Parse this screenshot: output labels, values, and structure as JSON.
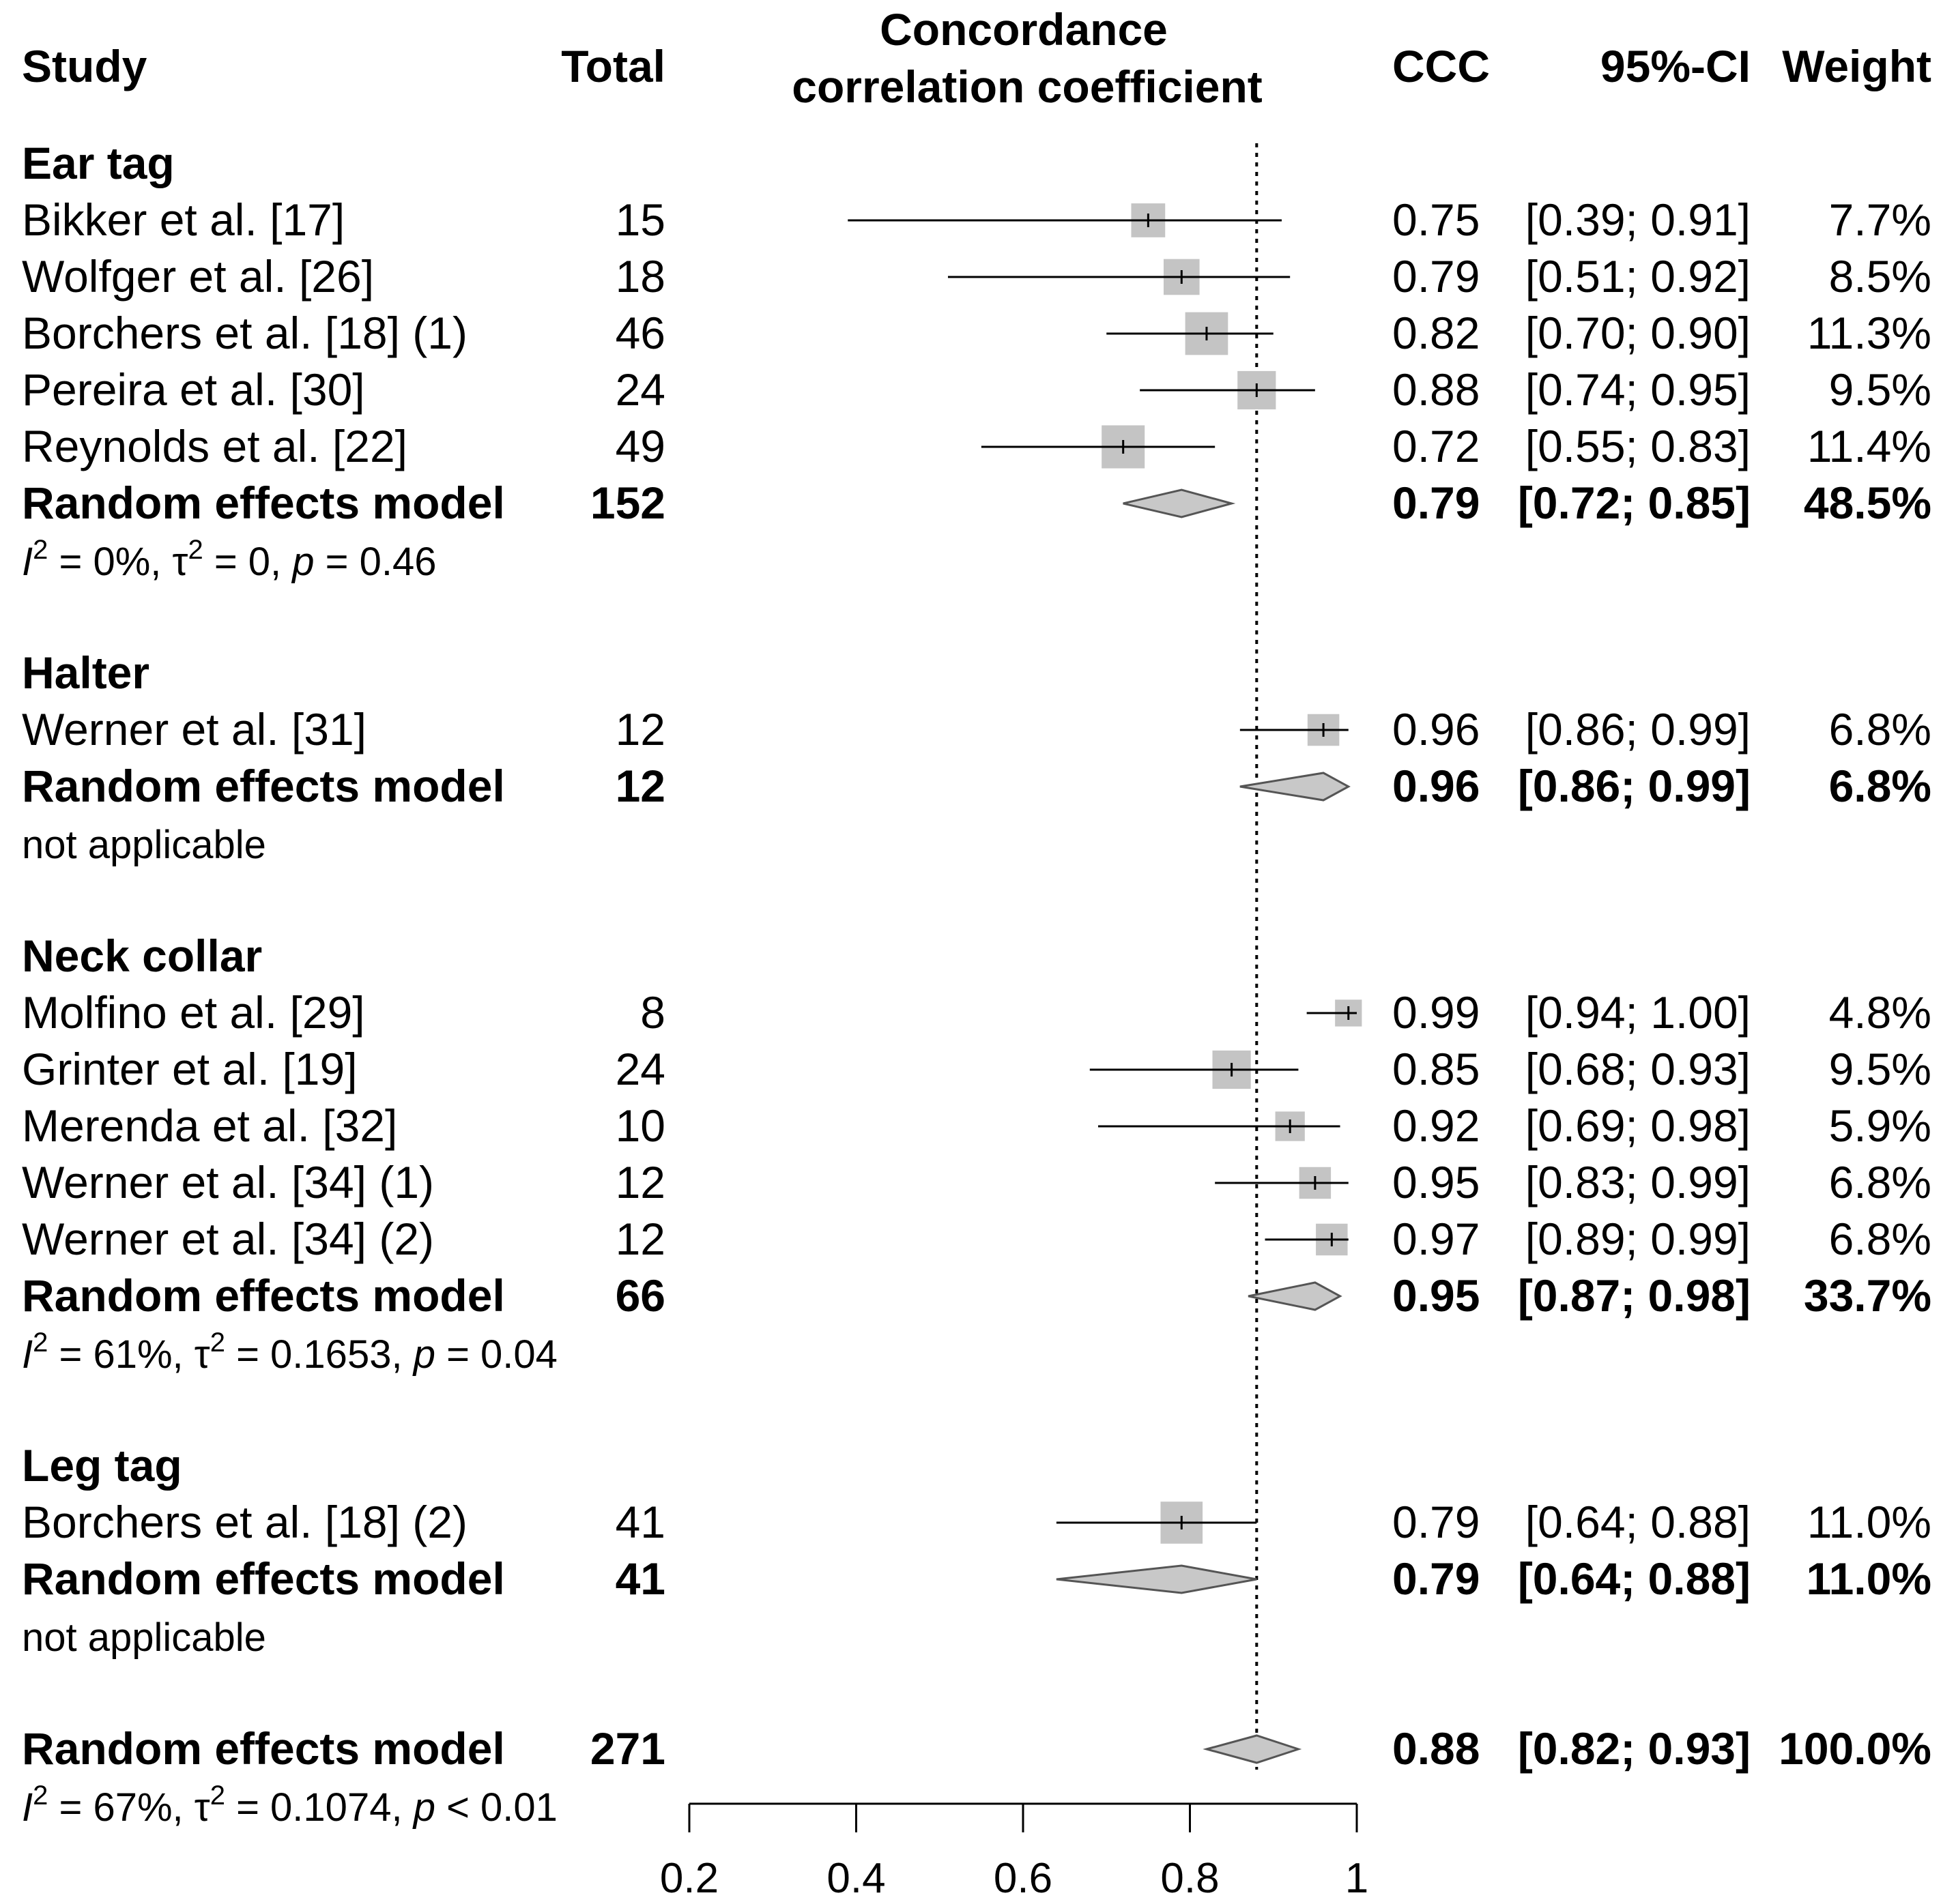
{
  "chart_data": {
    "type": "forest",
    "headers": {
      "study": "Study",
      "total": "Total",
      "plot_title_line1": "Concordance",
      "plot_title_line2": "correlation coefficient",
      "ccc": "CCC",
      "ci": "95%-CI",
      "weight": "Weight"
    },
    "xlim": [
      0.2,
      1.0
    ],
    "xticks": [
      "0.2",
      "0.4",
      "0.6",
      "0.8",
      "1"
    ],
    "reference_line": 0.88,
    "pooled_estimate_label": "Random effects model",
    "rows": [
      {
        "kind": "group",
        "label": "Ear tag"
      },
      {
        "kind": "study",
        "label": "Bikker et al. [17]",
        "total": "15",
        "ccc": "0.75",
        "ci": "[0.39; 0.91]",
        "weight": "7.7%",
        "est": 0.75,
        "lo": 0.39,
        "hi": 0.91,
        "w": 7.7
      },
      {
        "kind": "study",
        "label": "Wolfger et al. [26]",
        "total": "18",
        "ccc": "0.79",
        "ci": "[0.51; 0.92]",
        "weight": "8.5%",
        "est": 0.79,
        "lo": 0.51,
        "hi": 0.92,
        "w": 8.5
      },
      {
        "kind": "study",
        "label": "Borchers et al. [18] (1)",
        "total": "46",
        "ccc": "0.82",
        "ci": "[0.70; 0.90]",
        "weight": "11.3%",
        "est": 0.82,
        "lo": 0.7,
        "hi": 0.9,
        "w": 11.3
      },
      {
        "kind": "study",
        "label": "Pereira et al. [30]",
        "total": "24",
        "ccc": "0.88",
        "ci": "[0.74; 0.95]",
        "weight": "9.5%",
        "est": 0.88,
        "lo": 0.74,
        "hi": 0.95,
        "w": 9.5
      },
      {
        "kind": "study",
        "label": "Reynolds et al. [22]",
        "total": "49",
        "ccc": "0.72",
        "ci": "[0.55; 0.83]",
        "weight": "11.4%",
        "est": 0.72,
        "lo": 0.55,
        "hi": 0.83,
        "w": 11.4
      },
      {
        "kind": "pooled",
        "label": "Random effects model",
        "total": "152",
        "ccc": "0.79",
        "ci": "[0.72; 0.85]",
        "weight": "48.5%",
        "est": 0.79,
        "lo": 0.72,
        "hi": 0.85
      },
      {
        "kind": "het",
        "i2": "0%",
        "tau2": "0",
        "p_op": "=",
        "p": "0.46"
      },
      {
        "kind": "blank"
      },
      {
        "kind": "group",
        "label": "Halter"
      },
      {
        "kind": "study",
        "label": "Werner et al. [31]",
        "total": "12",
        "ccc": "0.96",
        "ci": "[0.86; 0.99]",
        "weight": "6.8%",
        "est": 0.96,
        "lo": 0.86,
        "hi": 0.99,
        "w": 6.8
      },
      {
        "kind": "pooled",
        "label": "Random effects model",
        "total": "12",
        "ccc": "0.96",
        "ci": "[0.86; 0.99]",
        "weight": "6.8%",
        "est": 0.96,
        "lo": 0.86,
        "hi": 0.99
      },
      {
        "kind": "note",
        "label": "not applicable"
      },
      {
        "kind": "blank"
      },
      {
        "kind": "group",
        "label": "Neck collar"
      },
      {
        "kind": "study",
        "label": "Molfino et al. [29]",
        "total": "8",
        "ccc": "0.99",
        "ci": "[0.94; 1.00]",
        "weight": "4.8%",
        "est": 0.99,
        "lo": 0.94,
        "hi": 1.0,
        "w": 4.8
      },
      {
        "kind": "study",
        "label": "Grinter et al. [19]",
        "total": "24",
        "ccc": "0.85",
        "ci": "[0.68; 0.93]",
        "weight": "9.5%",
        "est": 0.85,
        "lo": 0.68,
        "hi": 0.93,
        "w": 9.5
      },
      {
        "kind": "study",
        "label": "Merenda et al. [32]",
        "total": "10",
        "ccc": "0.92",
        "ci": "[0.69; 0.98]",
        "weight": "5.9%",
        "est": 0.92,
        "lo": 0.69,
        "hi": 0.98,
        "w": 5.9
      },
      {
        "kind": "study",
        "label": "Werner et al. [34] (1)",
        "total": "12",
        "ccc": "0.95",
        "ci": "[0.83; 0.99]",
        "weight": "6.8%",
        "est": 0.95,
        "lo": 0.83,
        "hi": 0.99,
        "w": 6.8
      },
      {
        "kind": "study",
        "label": "Werner et al. [34] (2)",
        "total": "12",
        "ccc": "0.97",
        "ci": "[0.89; 0.99]",
        "weight": "6.8%",
        "est": 0.97,
        "lo": 0.89,
        "hi": 0.99,
        "w": 6.8
      },
      {
        "kind": "pooled",
        "label": "Random effects model",
        "total": "66",
        "ccc": "0.95",
        "ci": "[0.87; 0.98]",
        "weight": "33.7%",
        "est": 0.95,
        "lo": 0.87,
        "hi": 0.98
      },
      {
        "kind": "het",
        "i2": "61%",
        "tau2": "0.1653",
        "p_op": "=",
        "p": "0.04"
      },
      {
        "kind": "blank"
      },
      {
        "kind": "group",
        "label": "Leg tag"
      },
      {
        "kind": "study",
        "label": "Borchers et al. [18] (2)",
        "total": "41",
        "ccc": "0.79",
        "ci": "[0.64; 0.88]",
        "weight": "11.0%",
        "est": 0.79,
        "lo": 0.64,
        "hi": 0.88,
        "w": 11.0
      },
      {
        "kind": "pooled",
        "label": "Random effects model",
        "total": "41",
        "ccc": "0.79",
        "ci": "[0.64; 0.88]",
        "weight": "11.0%",
        "est": 0.79,
        "lo": 0.64,
        "hi": 0.88
      },
      {
        "kind": "note",
        "label": "not applicable"
      },
      {
        "kind": "blank"
      },
      {
        "kind": "pooled",
        "label": "Random effects model",
        "total": "271",
        "ccc": "0.88",
        "ci": "[0.82; 0.93]",
        "weight": "100.0%",
        "est": 0.88,
        "lo": 0.82,
        "hi": 0.93
      },
      {
        "kind": "het",
        "i2": "67%",
        "tau2": "0.1074",
        "p_op": "<",
        "p": "0.01"
      }
    ]
  }
}
